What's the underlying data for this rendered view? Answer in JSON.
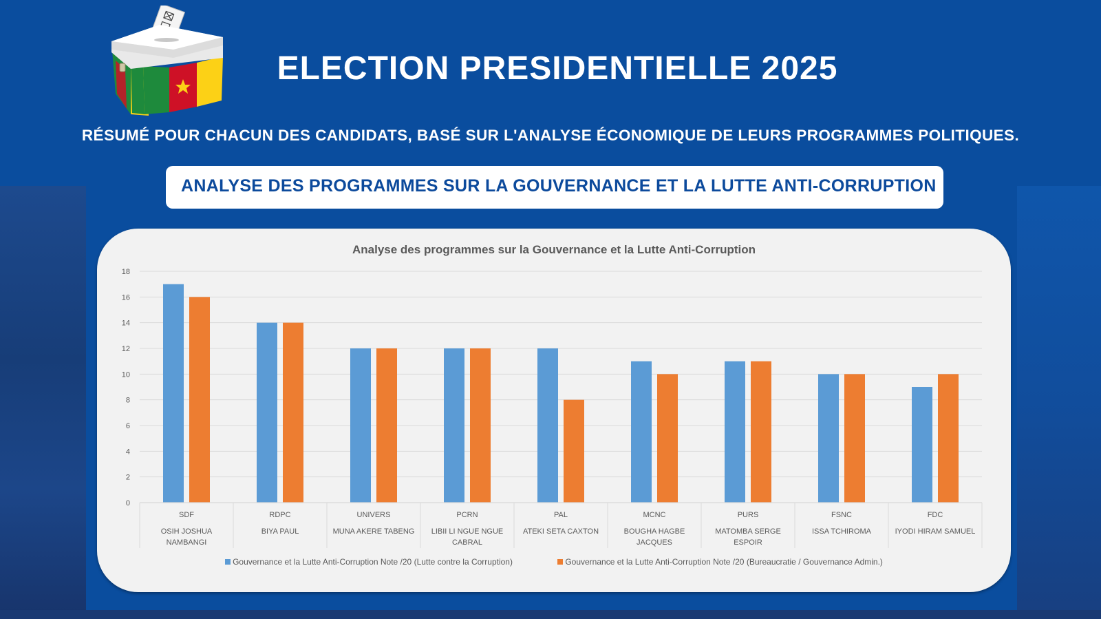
{
  "header": {
    "title": "ELECTION PRESIDENTIELLE 2025",
    "subtitle": "RÉSUMÉ POUR CHACUN DES CANDIDATS, BASÉ SUR L'ANALYSE ÉCONOMIQUE DE LEURS PROGRAMMES POLITIQUES.",
    "banner": "ANALYSE DES PROGRAMMES SUR LA GOUVERNANCE ET LA LUTTE ANTI-CORRUPTION",
    "logo_icon": "ballot-box-cameroon-flag-icon"
  },
  "colors": {
    "background": "#0a4d9e",
    "banner_text": "#0c4a9c",
    "series_blue": "#5b9bd5",
    "series_orange": "#ed7d31",
    "flag_green": "#1e8a3c",
    "flag_red": "#ce1126",
    "flag_yellow": "#fcd116"
  },
  "chart_data": {
    "type": "bar",
    "title": "Analyse des programmes sur la Gouvernance et la Lutte Anti-Corruption",
    "xlabel": "",
    "ylabel": "",
    "ylim": [
      0,
      18
    ],
    "yticks": [
      0,
      2,
      4,
      6,
      8,
      10,
      12,
      14,
      16,
      18
    ],
    "grid": true,
    "legend_position": "bottom",
    "categories": [
      {
        "party": "SDF",
        "candidate": [
          "OSIH JOSHUA",
          "NAMBANGI"
        ]
      },
      {
        "party": "RDPC",
        "candidate": [
          "BIYA PAUL"
        ]
      },
      {
        "party": "UNIVERS",
        "candidate": [
          "MUNA AKERE TABENG"
        ]
      },
      {
        "party": "PCRN",
        "candidate": [
          "LIBII LI NGUE NGUE",
          "CABRAL"
        ]
      },
      {
        "party": "PAL",
        "candidate": [
          "ATEKI SETA CAXTON"
        ]
      },
      {
        "party": "MCNC",
        "candidate": [
          "BOUGHA HAGBE",
          "JACQUES"
        ]
      },
      {
        "party": "PURS",
        "candidate": [
          "MATOMBA SERGE",
          "ESPOIR"
        ]
      },
      {
        "party": "FSNC",
        "candidate": [
          "ISSA TCHIROMA"
        ]
      },
      {
        "party": "FDC",
        "candidate": [
          "IYODI HIRAM SAMUEL"
        ]
      }
    ],
    "series": [
      {
        "name": "Gouvernance et la Lutte Anti-Corruption Note /20 (Lutte contre la Corruption)",
        "color": "#5b9bd5",
        "values": [
          17,
          14,
          12,
          12,
          12,
          11,
          11,
          10,
          9
        ]
      },
      {
        "name": "Gouvernance et la Lutte Anti-Corruption Note /20 (Bureaucratie / Gouvernance Admin.)",
        "color": "#ed7d31",
        "values": [
          16,
          14,
          12,
          12,
          8,
          10,
          11,
          10,
          10
        ]
      }
    ]
  }
}
